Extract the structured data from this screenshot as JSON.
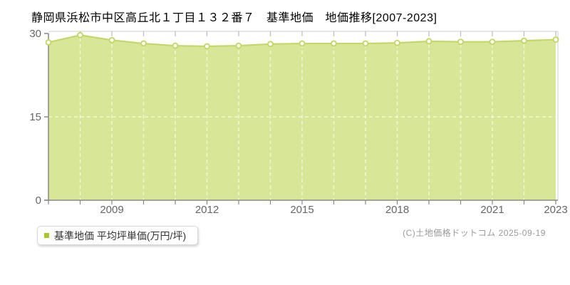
{
  "header": {
    "title": "静岡県浜松市中区高丘北１丁目１３２番７　基準地価　地価推移[2007-2023]"
  },
  "legend": {
    "label": "基準地価 平均坪単価(万円/坪)",
    "marker_color": "#a4c72c"
  },
  "footer": {
    "copyright": "(C)土地価格ドットコム 2025-09-19"
  },
  "colors": {
    "line": "#c4d768",
    "fill": "#d8e797",
    "marker_fill": "#ffffff",
    "axis": "#888888",
    "frame": "#dddddd",
    "grid": "#ffffff",
    "top_tick": "#bbbbbb",
    "tick_label": "#666666"
  },
  "chart_data": {
    "type": "area",
    "title": "静岡県浜松市中区高丘北１丁目１３２番７　基準地価　地価推移[2007-2023]",
    "x": [
      2007,
      2008,
      2009,
      2010,
      2011,
      2012,
      2013,
      2014,
      2015,
      2016,
      2017,
      2018,
      2019,
      2020,
      2021,
      2022,
      2023
    ],
    "series": [
      {
        "name": "基準地価 平均坪単価(万円/坪)",
        "values": [
          28.4,
          29.7,
          28.8,
          28.2,
          27.8,
          27.7,
          27.8,
          28.1,
          28.2,
          28.2,
          28.2,
          28.3,
          28.6,
          28.5,
          28.5,
          28.7,
          28.9
        ]
      }
    ],
    "xlabel": "",
    "ylabel": "平均坪単価(万円/坪)",
    "ylim": [
      0,
      30
    ],
    "yticks": [
      0,
      15,
      30
    ],
    "xticks_labeled": [
      2009,
      2012,
      2015,
      2018,
      2021,
      2023
    ],
    "grid": {
      "horizontal_dashed_at": [
        15
      ],
      "vertical_dashed": "every-year",
      "style": "dashed-light-over-fill"
    },
    "legend_position": "bottom-left"
  }
}
